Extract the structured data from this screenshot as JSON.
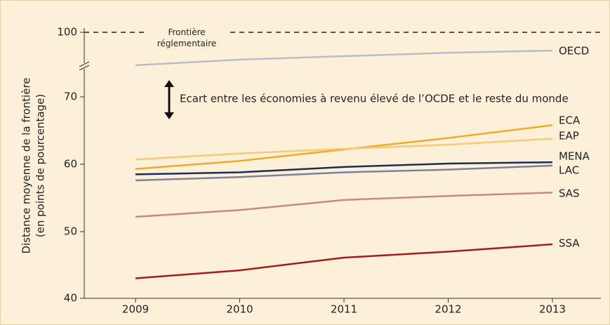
{
  "chart_data": {
    "type": "line",
    "ylabel": [
      "Distance moyenne de la frontière",
      "(en points de pourcentage)"
    ],
    "categories": [
      "2009",
      "2010",
      "2011",
      "2012",
      "2013"
    ],
    "ylim": [
      40,
      100
    ],
    "yticks": [
      40,
      50,
      60,
      70,
      100
    ],
    "axis_break": true,
    "frontier_line": {
      "value": 100,
      "label": "Frontière réglementaire"
    },
    "annotation": "Ecart entre les économies à revenu élevé de l’OCDE et le reste du monde",
    "series": [
      {
        "name": "OECD",
        "color": "#b9bdc6",
        "values": [
          84.7,
          87.3,
          88.9,
          90.5,
          91.5
        ]
      },
      {
        "name": "ECA",
        "color": "#f2a928",
        "values": [
          59.3,
          60.5,
          62.2,
          63.9,
          65.8
        ]
      },
      {
        "name": "EAP",
        "color": "#f8c978",
        "values": [
          60.7,
          61.6,
          62.3,
          62.9,
          63.8
        ]
      },
      {
        "name": "MENA",
        "color": "#1f2b57",
        "values": [
          58.5,
          58.8,
          59.6,
          60.1,
          60.3
        ]
      },
      {
        "name": "LAC",
        "color": "#7f7f9e",
        "values": [
          57.6,
          58.1,
          58.8,
          59.2,
          59.8
        ]
      },
      {
        "name": "SAS",
        "color": "#c88a7a",
        "values": [
          52.2,
          53.2,
          54.7,
          55.3,
          55.8
        ]
      },
      {
        "name": "SSA",
        "color": "#a31c1c",
        "values": [
          43.0,
          44.2,
          46.1,
          47.0,
          48.1
        ]
      }
    ]
  }
}
